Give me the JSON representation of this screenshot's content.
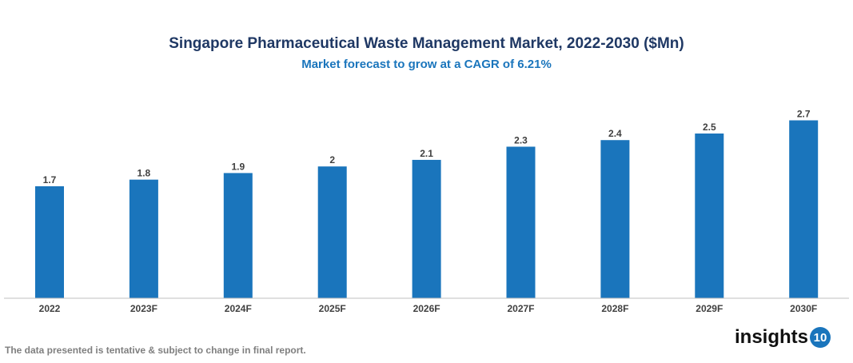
{
  "chart_data": {
    "type": "bar",
    "title": "Singapore Pharmaceutical Waste Management Market, 2022-2030 ($Mn)",
    "subtitle": "Market forecast to grow at a CAGR of 6.21%",
    "categories": [
      "2022",
      "2023F",
      "2024F",
      "2025F",
      "2026F",
      "2027F",
      "2028F",
      "2029F",
      "2030F"
    ],
    "values": [
      1.7,
      1.8,
      1.9,
      2,
      2.1,
      2.3,
      2.4,
      2.5,
      2.7
    ],
    "labels": [
      "1.7",
      "1.8",
      "1.9",
      "2",
      "2.1",
      "2.3",
      "2.4",
      "2.5",
      "2.7"
    ],
    "xlabel": "",
    "ylabel": "",
    "ylim": [
      0,
      2.7
    ],
    "grid": false,
    "bar_color": "#1a75bc"
  },
  "footer": {
    "note": "The data presented is tentative & subject to change in final report.",
    "logo_text": "insights",
    "logo_number": "10"
  }
}
